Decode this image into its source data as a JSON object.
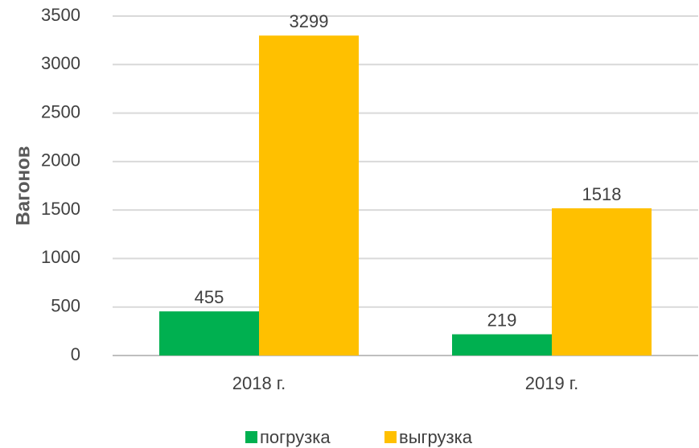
{
  "chart_data": {
    "type": "bar",
    "ylabel": "Вагонов",
    "categories": [
      "2018 г.",
      "2019 г."
    ],
    "series": [
      {
        "name": "погрузка",
        "color": "#00b050",
        "values": [
          455,
          219
        ]
      },
      {
        "name": "выгрузка",
        "color": "#ffc000",
        "values": [
          3299,
          1518
        ]
      }
    ],
    "ylim": [
      0,
      3500
    ],
    "yticks": [
      0,
      500,
      1000,
      1500,
      2000,
      2500,
      3000,
      3500
    ],
    "grid": true,
    "legend": "bottom"
  }
}
